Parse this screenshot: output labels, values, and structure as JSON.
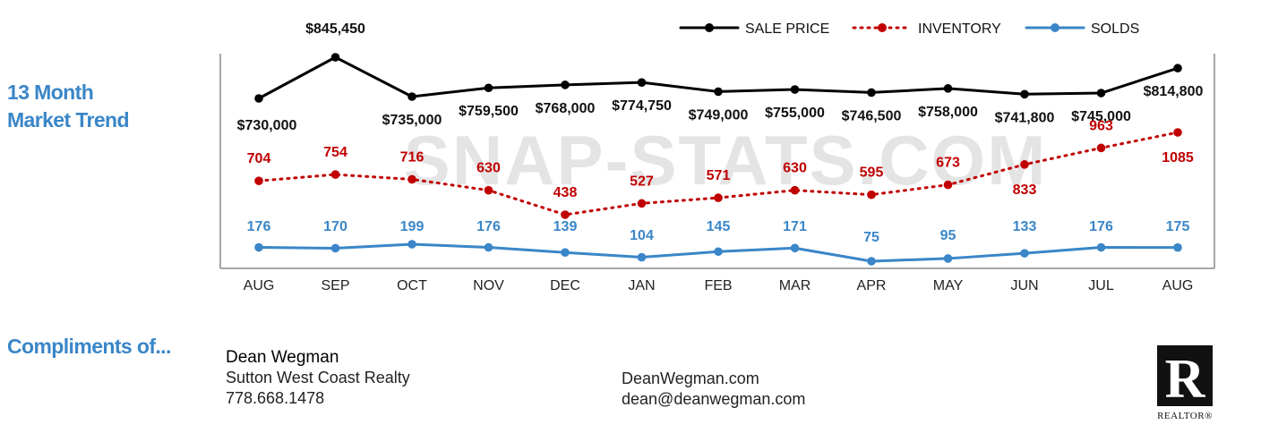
{
  "side_title": {
    "line1": "13 Month",
    "line2": "Market Trend"
  },
  "watermark": "SNAP-STATS.COM",
  "compliments_label": "Compliments of...",
  "agent": {
    "name": "Dean Wegman",
    "company": "Sutton West Coast Realty",
    "phone": "778.668.1478",
    "website": "DeanWegman.com",
    "email": "dean@deanwegman.com"
  },
  "realtor_logo": {
    "icon": "realtor-r-logo",
    "text": "REALTOR®"
  },
  "chart_data": {
    "type": "line",
    "categories": [
      "AUG",
      "SEP",
      "OCT",
      "NOV",
      "DEC",
      "JAN",
      "FEB",
      "MAR",
      "APR",
      "MAY",
      "JUN",
      "JUL",
      "AUG"
    ],
    "legend_position": "top-right",
    "grid": false,
    "series": [
      {
        "name": "SALE PRICE",
        "color": "#000000",
        "style": "solid",
        "values": [
          730000,
          845450,
          735000,
          759500,
          768000,
          774750,
          749000,
          755000,
          746500,
          758000,
          741800,
          745000,
          814800
        ],
        "labels": [
          "$730,000",
          "$845,450",
          "$735,000",
          "$759,500",
          "$768,000",
          "$774,750",
          "$749,000",
          "$755,000",
          "$746,500",
          "$758,000",
          "$741,800",
          "$745,000",
          "$814,800"
        ]
      },
      {
        "name": "INVENTORY",
        "color": "#c00000",
        "style": "dotted",
        "values": [
          704,
          754,
          716,
          630,
          438,
          527,
          571,
          630,
          595,
          673,
          833,
          963,
          1085
        ],
        "labels": [
          "704",
          "754",
          "716",
          "630",
          "438",
          "527",
          "571",
          "630",
          "595",
          "673",
          "833",
          "963",
          "1085"
        ]
      },
      {
        "name": "SOLDS",
        "color": "#3a86c8",
        "style": "solid",
        "values": [
          176,
          170,
          199,
          176,
          139,
          104,
          145,
          171,
          75,
          95,
          133,
          176,
          175
        ],
        "labels": [
          "176",
          "170",
          "199",
          "176",
          "139",
          "104",
          "145",
          "171",
          "75",
          "95",
          "133",
          "176",
          "175"
        ]
      }
    ]
  }
}
